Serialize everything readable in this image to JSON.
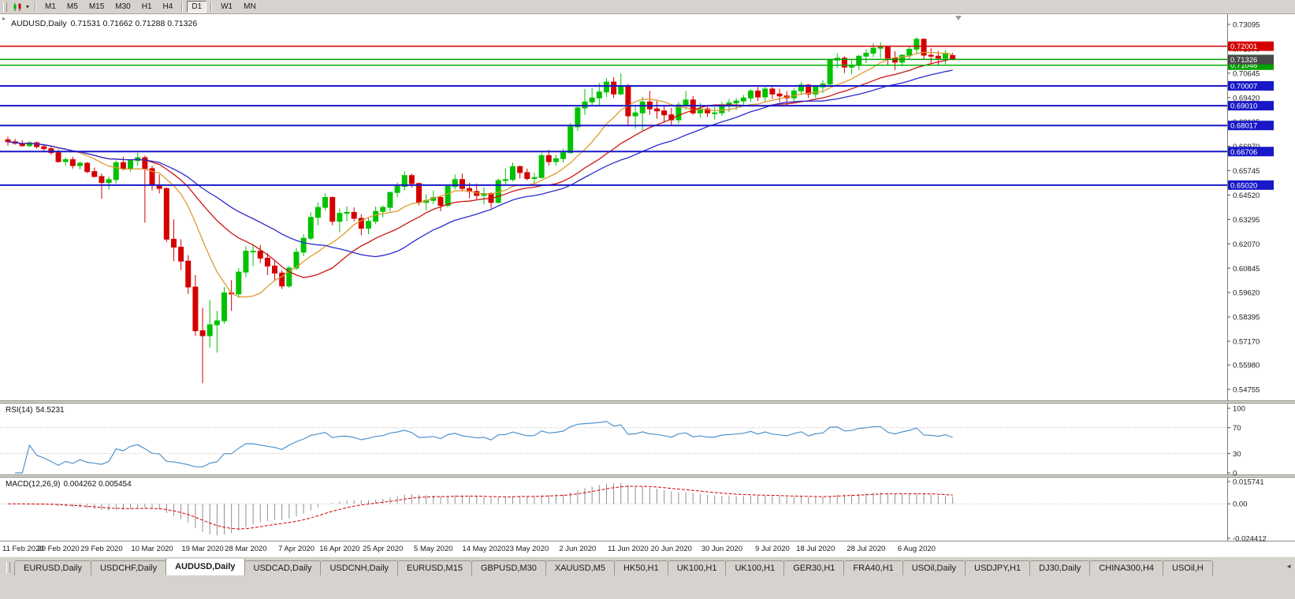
{
  "toolbar": {
    "timeframes": [
      "M1",
      "M5",
      "M15",
      "M30",
      "H1",
      "H4",
      "D1",
      "W1",
      "MN"
    ],
    "active_timeframe": "D1",
    "dropdown_glyph": "▾"
  },
  "chart_data": {
    "type": "candlestick",
    "symbol": "AUDUSD",
    "timeframe": "Daily",
    "title": "AUDUSD,Daily",
    "ohlc_label": "0.71531 0.71662 0.71288 0.71326",
    "current_bid": 0.71326,
    "bid_label": "0.71326",
    "bid_tag_color": "#4a4a4a",
    "colors": {
      "up": "#00c200",
      "down": "#d40000"
    },
    "price_ticks": [
      {
        "label": "0.73095",
        "price": 0.73095
      },
      {
        "label": "0.71870",
        "price": 0.7187
      },
      {
        "label": "0.70645",
        "price": 0.70645
      },
      {
        "label": "0.69420",
        "price": 0.6942
      },
      {
        "label": "0.68195",
        "price": 0.68195
      },
      {
        "label": "0.66970",
        "price": 0.6697
      },
      {
        "label": "0.65745",
        "price": 0.65745
      },
      {
        "label": "0.64520",
        "price": 0.6452
      },
      {
        "label": "0.63295",
        "price": 0.63295
      },
      {
        "label": "0.62070",
        "price": 0.6207
      },
      {
        "label": "0.60845",
        "price": 0.60845
      },
      {
        "label": "0.59620",
        "price": 0.5962
      },
      {
        "label": "0.58395",
        "price": 0.58395
      },
      {
        "label": "0.57170",
        "price": 0.5717
      },
      {
        "label": "0.55980",
        "price": 0.5598
      },
      {
        "label": "0.54755",
        "price": 0.54755
      }
    ],
    "h_lines": [
      {
        "price": 0.72001,
        "label": "0.72001",
        "color": "#d40000",
        "width": 1.5
      },
      {
        "price": 0.71335,
        "label": "0.71335",
        "color": "#00a000",
        "width": 1.5,
        "tag_color": "#157a15"
      },
      {
        "price": 0.71046,
        "label": "0.71046",
        "color": "#00b400",
        "width": 1.5,
        "tag_color": "#00a000"
      },
      {
        "price": 0.70007,
        "label": "0.70007",
        "color": "#1818c8",
        "width": 2
      },
      {
        "price": 0.6901,
        "label": "0.69010",
        "color": "#1818c8",
        "width": 2
      },
      {
        "price": 0.68017,
        "label": "0.68017",
        "color": "#1818c8",
        "width": 2
      },
      {
        "price": 0.66706,
        "label": "0.66706",
        "color": "#1818c8",
        "width": 2
      },
      {
        "price": 0.6502,
        "label": "0.65020",
        "color": "#1818c8",
        "width": 2
      }
    ],
    "moving_averages": [
      {
        "name": "fast-ma",
        "period": 10,
        "color": "#dd9b2f"
      },
      {
        "name": "medium-ma",
        "period": 20,
        "color": "#cc1414"
      },
      {
        "name": "slow-ma",
        "period": 30,
        "color": "#2a2ad0"
      }
    ],
    "date_labels": [
      {
        "label": "11 Feb 2020",
        "index": 0
      },
      {
        "label": "20 Feb 2020",
        "index": 7
      },
      {
        "label": "29 Feb 2020",
        "index": 13
      },
      {
        "label": "10 Mar 2020",
        "index": 20
      },
      {
        "label": "19 Mar 2020",
        "index": 27
      },
      {
        "label": "28 Mar 2020",
        "index": 33
      },
      {
        "label": "7 Apr 2020",
        "index": 40
      },
      {
        "label": "16 Apr 2020",
        "index": 46
      },
      {
        "label": "25 Apr 2020",
        "index": 52
      },
      {
        "label": "5 May 2020",
        "index": 59
      },
      {
        "label": "14 May 2020",
        "index": 66
      },
      {
        "label": "23 May 2020",
        "index": 72
      },
      {
        "label": "2 Jun 2020",
        "index": 79
      },
      {
        "label": "11 Jun 2020",
        "index": 86
      },
      {
        "label": "20 Jun 2020",
        "index": 92
      },
      {
        "label": "30 Jun 2020",
        "index": 99
      },
      {
        "label": "9 Jul 2020",
        "index": 106
      },
      {
        "label": "18 Jul 2020",
        "index": 112
      },
      {
        "label": "28 Jul 2020",
        "index": 119
      },
      {
        "label": "6 Aug 2020",
        "index": 126
      }
    ],
    "candles": [
      [
        0.673,
        0.6745,
        0.67,
        0.672
      ],
      [
        0.672,
        0.6735,
        0.6705,
        0.6712
      ],
      [
        0.6712,
        0.6728,
        0.6695,
        0.67
      ],
      [
        0.67,
        0.6722,
        0.6692,
        0.6715
      ],
      [
        0.6715,
        0.672,
        0.6685,
        0.6695
      ],
      [
        0.6695,
        0.6705,
        0.667,
        0.6685
      ],
      [
        0.6685,
        0.6695,
        0.6655,
        0.6665
      ],
      [
        0.6665,
        0.668,
        0.6615,
        0.662
      ],
      [
        0.662,
        0.664,
        0.66,
        0.663
      ],
      [
        0.663,
        0.6645,
        0.6585,
        0.66
      ],
      [
        0.66,
        0.662,
        0.658,
        0.6612
      ],
      [
        0.6612,
        0.6618,
        0.6562,
        0.657
      ],
      [
        0.657,
        0.659,
        0.654,
        0.6545
      ],
      [
        0.6545,
        0.656,
        0.6433,
        0.6515
      ],
      [
        0.6515,
        0.6545,
        0.648,
        0.653
      ],
      [
        0.653,
        0.6625,
        0.651,
        0.6615
      ],
      [
        0.6615,
        0.6645,
        0.6575,
        0.6585
      ],
      [
        0.6585,
        0.663,
        0.657,
        0.6625
      ],
      [
        0.6625,
        0.6665,
        0.66,
        0.664
      ],
      [
        0.664,
        0.665,
        0.6313,
        0.6585
      ],
      [
        0.6585,
        0.66,
        0.6475,
        0.65
      ],
      [
        0.65,
        0.6555,
        0.646,
        0.6485
      ],
      [
        0.6485,
        0.649,
        0.6215,
        0.623
      ],
      [
        0.623,
        0.633,
        0.612,
        0.619
      ],
      [
        0.619,
        0.623,
        0.6075,
        0.612
      ],
      [
        0.612,
        0.615,
        0.5955,
        0.599
      ],
      [
        0.599,
        0.605,
        0.5745,
        0.577
      ],
      [
        0.577,
        0.5885,
        0.5506,
        0.5745
      ],
      [
        0.5745,
        0.5925,
        0.5685,
        0.58
      ],
      [
        0.58,
        0.587,
        0.566,
        0.582
      ],
      [
        0.582,
        0.599,
        0.5805,
        0.596
      ],
      [
        0.596,
        0.6025,
        0.587,
        0.5955
      ],
      [
        0.5955,
        0.6085,
        0.5935,
        0.6065
      ],
      [
        0.6065,
        0.6195,
        0.604,
        0.617
      ],
      [
        0.617,
        0.6205,
        0.6095,
        0.617
      ],
      [
        0.617,
        0.62,
        0.611,
        0.6135
      ],
      [
        0.6135,
        0.616,
        0.605,
        0.6095
      ],
      [
        0.6095,
        0.612,
        0.602,
        0.606
      ],
      [
        0.606,
        0.6075,
        0.598,
        0.5995
      ],
      [
        0.5995,
        0.6095,
        0.5985,
        0.6085
      ],
      [
        0.6085,
        0.6185,
        0.6075,
        0.6165
      ],
      [
        0.6165,
        0.6255,
        0.6145,
        0.6235
      ],
      [
        0.6235,
        0.6365,
        0.6225,
        0.634
      ],
      [
        0.634,
        0.6415,
        0.63,
        0.639
      ],
      [
        0.639,
        0.646,
        0.6375,
        0.644
      ],
      [
        0.644,
        0.6445,
        0.63,
        0.632
      ],
      [
        0.632,
        0.6385,
        0.6265,
        0.636
      ],
      [
        0.636,
        0.6395,
        0.632,
        0.6365
      ],
      [
        0.6365,
        0.639,
        0.632,
        0.6335
      ],
      [
        0.6335,
        0.6355,
        0.625,
        0.6285
      ],
      [
        0.6285,
        0.6335,
        0.6255,
        0.632
      ],
      [
        0.632,
        0.6395,
        0.6305,
        0.637
      ],
      [
        0.637,
        0.64,
        0.634,
        0.639
      ],
      [
        0.639,
        0.647,
        0.637,
        0.6465
      ],
      [
        0.6465,
        0.6515,
        0.644,
        0.6495
      ],
      [
        0.6495,
        0.657,
        0.6475,
        0.655
      ],
      [
        0.655,
        0.656,
        0.649,
        0.651
      ],
      [
        0.651,
        0.6515,
        0.64,
        0.6415
      ],
      [
        0.6415,
        0.6455,
        0.6375,
        0.6425
      ],
      [
        0.6425,
        0.6475,
        0.6405,
        0.644
      ],
      [
        0.644,
        0.645,
        0.637,
        0.64
      ],
      [
        0.64,
        0.6505,
        0.639,
        0.6495
      ],
      [
        0.6495,
        0.6555,
        0.648,
        0.653
      ],
      [
        0.653,
        0.656,
        0.647,
        0.6485
      ],
      [
        0.6485,
        0.6515,
        0.6435,
        0.647
      ],
      [
        0.647,
        0.651,
        0.6425,
        0.645
      ],
      [
        0.645,
        0.649,
        0.6405,
        0.646
      ],
      [
        0.646,
        0.6465,
        0.6385,
        0.6415
      ],
      [
        0.6415,
        0.6535,
        0.641,
        0.6525
      ],
      [
        0.6525,
        0.6585,
        0.6505,
        0.653
      ],
      [
        0.653,
        0.6615,
        0.652,
        0.6595
      ],
      [
        0.6595,
        0.66,
        0.6535,
        0.6565
      ],
      [
        0.6565,
        0.6585,
        0.6525,
        0.6535
      ],
      [
        0.6535,
        0.6565,
        0.651,
        0.654
      ],
      [
        0.654,
        0.6665,
        0.6535,
        0.665
      ],
      [
        0.665,
        0.668,
        0.66,
        0.662
      ],
      [
        0.662,
        0.6655,
        0.66,
        0.6635
      ],
      [
        0.6635,
        0.6685,
        0.6615,
        0.6665
      ],
      [
        0.6665,
        0.6815,
        0.666,
        0.6795
      ],
      [
        0.6795,
        0.69,
        0.6775,
        0.689
      ],
      [
        0.689,
        0.6985,
        0.6855,
        0.692
      ],
      [
        0.692,
        0.699,
        0.69,
        0.694
      ],
      [
        0.694,
        0.7015,
        0.6905,
        0.697
      ],
      [
        0.697,
        0.704,
        0.6945,
        0.702
      ],
      [
        0.702,
        0.7045,
        0.694,
        0.696
      ],
      [
        0.696,
        0.7063,
        0.6955,
        0.7
      ],
      [
        0.7,
        0.701,
        0.68,
        0.685
      ],
      [
        0.685,
        0.6905,
        0.6785,
        0.6865
      ],
      [
        0.6865,
        0.6945,
        0.6775,
        0.692
      ],
      [
        0.692,
        0.6975,
        0.6855,
        0.6885
      ],
      [
        0.6885,
        0.6925,
        0.6835,
        0.6875
      ],
      [
        0.6875,
        0.6905,
        0.6815,
        0.6855
      ],
      [
        0.6855,
        0.689,
        0.68,
        0.683
      ],
      [
        0.683,
        0.692,
        0.681,
        0.6905
      ],
      [
        0.6905,
        0.6975,
        0.688,
        0.693
      ],
      [
        0.693,
        0.695,
        0.6855,
        0.6865
      ],
      [
        0.6865,
        0.6915,
        0.684,
        0.6885
      ],
      [
        0.6885,
        0.69,
        0.6845,
        0.6865
      ],
      [
        0.6865,
        0.6895,
        0.683,
        0.6865
      ],
      [
        0.6865,
        0.692,
        0.685,
        0.6905
      ],
      [
        0.6905,
        0.6935,
        0.687,
        0.6915
      ],
      [
        0.6915,
        0.694,
        0.688,
        0.6925
      ],
      [
        0.6925,
        0.6955,
        0.69,
        0.694
      ],
      [
        0.694,
        0.6985,
        0.692,
        0.6975
      ],
      [
        0.6975,
        0.6995,
        0.6925,
        0.6945
      ],
      [
        0.6945,
        0.7,
        0.692,
        0.6985
      ],
      [
        0.6985,
        0.6995,
        0.6935,
        0.696
      ],
      [
        0.696,
        0.6985,
        0.692,
        0.695
      ],
      [
        0.695,
        0.6975,
        0.69,
        0.694
      ],
      [
        0.694,
        0.699,
        0.692,
        0.6975
      ],
      [
        0.6975,
        0.702,
        0.6955,
        0.7005
      ],
      [
        0.7005,
        0.701,
        0.694,
        0.696
      ],
      [
        0.696,
        0.7005,
        0.694,
        0.6995
      ],
      [
        0.6995,
        0.703,
        0.6965,
        0.701
      ],
      [
        0.701,
        0.7135,
        0.7,
        0.713
      ],
      [
        0.713,
        0.7165,
        0.709,
        0.714
      ],
      [
        0.714,
        0.715,
        0.7065,
        0.7095
      ],
      [
        0.7095,
        0.713,
        0.706,
        0.7105
      ],
      [
        0.7105,
        0.7155,
        0.708,
        0.715
      ],
      [
        0.715,
        0.7185,
        0.7115,
        0.7165
      ],
      [
        0.7165,
        0.7215,
        0.7145,
        0.719
      ],
      [
        0.719,
        0.722,
        0.714,
        0.7195
      ],
      [
        0.7195,
        0.72,
        0.7105,
        0.714
      ],
      [
        0.714,
        0.7175,
        0.708,
        0.712
      ],
      [
        0.712,
        0.716,
        0.71,
        0.7155
      ],
      [
        0.7155,
        0.72,
        0.7135,
        0.7185
      ],
      [
        0.7185,
        0.7245,
        0.716,
        0.7235
      ],
      [
        0.7235,
        0.724,
        0.7135,
        0.7155
      ],
      [
        0.7155,
        0.719,
        0.711,
        0.715
      ],
      [
        0.715,
        0.7175,
        0.7105,
        0.714
      ],
      [
        0.714,
        0.718,
        0.711,
        0.7165
      ],
      [
        0.7153,
        0.7166,
        0.7129,
        0.7133
      ]
    ],
    "indicators": {
      "rsi": {
        "name": "RSI(14)",
        "period": 14,
        "value_label": "54.5231",
        "levels": [
          100,
          70,
          30,
          0
        ],
        "dotted_levels": [
          70,
          30
        ],
        "color": "#4f94ce"
      },
      "macd": {
        "name": "MACD(12,26,9)",
        "fast": 12,
        "slow": 26,
        "signal": 9,
        "value_labels": "0.004262 0.005454",
        "axis": [
          {
            "label": "0.015741",
            "value": 0.015741
          },
          {
            "label": "0.00",
            "value": 0
          },
          {
            "label": "-0.024412",
            "value": -0.024412
          }
        ],
        "histogram_color": "#909090",
        "signal_color": "#d40000"
      }
    }
  },
  "tabs": {
    "active_index": 2,
    "scroll_left_glyph": "◄",
    "items": [
      "EURUSD,Daily",
      "USDCHF,Daily",
      "AUDUSD,Daily",
      "USDCAD,Daily",
      "USDCNH,Daily",
      "EURUSD,M15",
      "GBPUSD,M30",
      "XAUUSD,M5",
      "HK50,H1",
      "UK100,H1",
      "UK100,H1",
      "GER30,H1",
      "FRA40,H1",
      "USOil,Daily",
      "USDJPY,H1",
      "DJ30,Daily",
      "CHINA300,H4",
      "USOil,H"
    ]
  }
}
